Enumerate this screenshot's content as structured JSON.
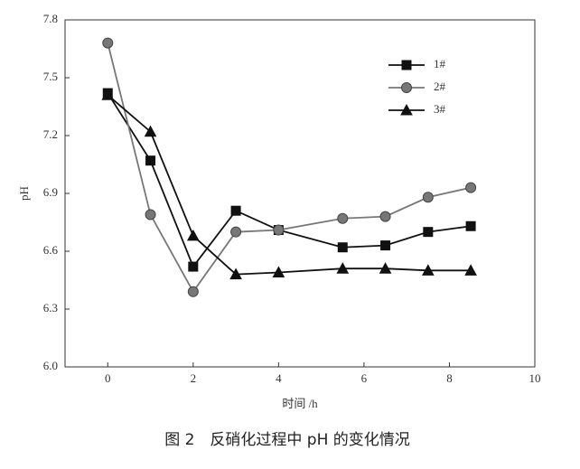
{
  "chart_data": {
    "type": "line",
    "caption": "图 2　反硝化过程中 pH 的变化情况",
    "xlabel": "时间 /h",
    "ylabel": "pH",
    "xlim": [
      -1,
      10
    ],
    "xticks": [
      0,
      2,
      4,
      6,
      8,
      10
    ],
    "ylim": [
      6,
      7.8
    ],
    "yticks": [
      {
        "value": 6,
        "label": "6.0"
      },
      6.3,
      6.6,
      6.9,
      7.2,
      7.5,
      7.8
    ],
    "legend": "upper right",
    "series": [
      {
        "name": "1#",
        "color": "#111111",
        "marker": "square",
        "x": [
          0,
          1,
          2,
          3,
          4,
          5.5,
          6.5,
          7.5,
          8.5
        ],
        "values": [
          7.42,
          7.07,
          6.52,
          6.81,
          6.71,
          6.62,
          6.63,
          6.7,
          6.73
        ]
      },
      {
        "name": "2#",
        "color": "#777777",
        "marker": "circle",
        "x": [
          0,
          1,
          2,
          3,
          4,
          5.5,
          6.5,
          7.5,
          8.5
        ],
        "values": [
          7.68,
          6.79,
          6.39,
          6.7,
          6.71,
          6.77,
          6.78,
          6.88,
          6.93
        ]
      },
      {
        "name": "3#",
        "color": "#111111",
        "marker": "triangle",
        "x": [
          0,
          1,
          2,
          3,
          4,
          5.5,
          6.5,
          7.5,
          8.5
        ],
        "values": [
          7.41,
          7.22,
          6.68,
          6.48,
          6.49,
          6.51,
          6.51,
          6.5,
          6.5
        ]
      }
    ]
  }
}
